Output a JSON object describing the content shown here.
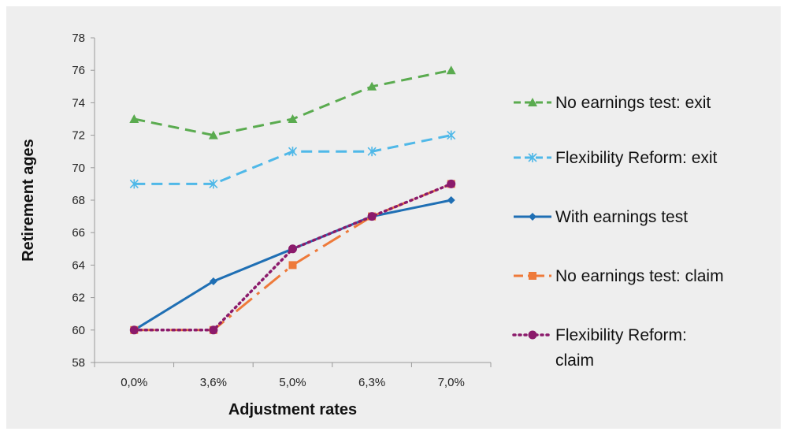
{
  "chart_data": {
    "type": "line",
    "xlabel": "Adjustment rates",
    "ylabel": "Retirement ages",
    "categories": [
      "0,0%",
      "3,6%",
      "5,0%",
      "6,3%",
      "7,0%"
    ],
    "ylim": [
      58,
      78
    ],
    "yticks": [
      58,
      60,
      62,
      64,
      66,
      68,
      70,
      72,
      74,
      76,
      78
    ],
    "grid": false,
    "legend_position": "right",
    "series": [
      {
        "name": "No earnings test: exit",
        "values": [
          73,
          72,
          73,
          75,
          76
        ],
        "color": "#5aab4f",
        "dash": "14,8",
        "marker": "triangle"
      },
      {
        "name": "Flexibility Reform: exit",
        "values": [
          69,
          69,
          71,
          71,
          72
        ],
        "color": "#4fb8e8",
        "dash": "14,8",
        "marker": "star"
      },
      {
        "name": "With earnings test",
        "values": [
          60,
          63,
          65,
          67,
          68
        ],
        "color": "#1f6fb4",
        "dash": "",
        "marker": "diamond"
      },
      {
        "name": "No earnings test: claim",
        "values": [
          60,
          60,
          64,
          67,
          69
        ],
        "color": "#ee7a3a",
        "dash": "26,8,4,8",
        "marker": "square"
      },
      {
        "name": "Flexibility Reform: claim",
        "values": [
          60,
          60,
          65,
          67,
          69
        ],
        "color": "#8b1a6b",
        "dash": "2,5",
        "marker": "circle"
      }
    ]
  }
}
